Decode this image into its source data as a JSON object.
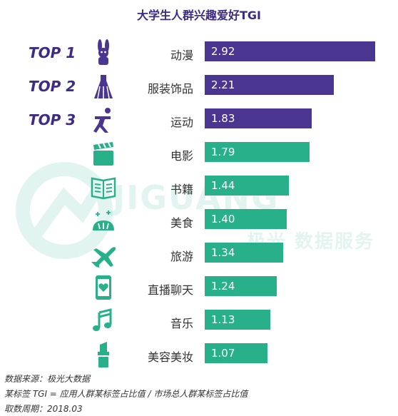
{
  "chart_data": {
    "type": "bar",
    "title": "大学生人群兴趣爱好TGI",
    "categories": [
      "动漫",
      "服装饰品",
      "运动",
      "电影",
      "书籍",
      "美食",
      "旅游",
      "直播聊天",
      "音乐",
      "美容美妆"
    ],
    "values": [
      2.92,
      2.21,
      1.83,
      1.79,
      1.44,
      1.4,
      1.34,
      1.24,
      1.13,
      1.07
    ],
    "value_labels": [
      "2.92",
      "2.21",
      "1.83",
      "1.79",
      "1.44",
      "1.40",
      "1.34",
      "1.24",
      "1.13",
      "1.07"
    ],
    "ranks": [
      "TOP 1",
      "TOP 2",
      "TOP 3"
    ],
    "icons": [
      "rabbit-icon",
      "dress-icon",
      "runner-icon",
      "clapperboard-icon",
      "book-icon",
      "bread-icon",
      "airplane-icon",
      "phone-heart-icon",
      "music-note-icon",
      "lipstick-icon"
    ],
    "colors": {
      "top": "#4a3590",
      "rest": "#27b08a",
      "title": "#3d2b86"
    },
    "xlim": [
      0,
      2.92
    ]
  },
  "watermark": {
    "brand": "JIGUANG",
    "sub": "极光 数据服务"
  },
  "footer": {
    "source": "数据来源：极光大数据",
    "definition": "某标签 TGI = 应用人群某标签占比值 / 市场总人群某标签占比值",
    "period": "取数周期：2018.03"
  }
}
